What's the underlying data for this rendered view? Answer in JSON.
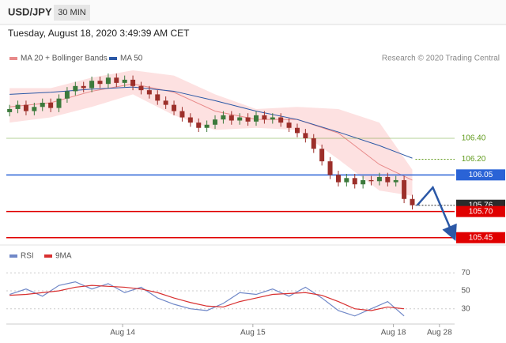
{
  "header": {
    "symbol": "USD/JPY",
    "interval": "30 MIN",
    "timestamp": "Tuesday, August 18, 2020 3:49:39 AM CET",
    "source": "Research © 2020 Trading Central"
  },
  "chart_data": [
    {
      "type": "candlestick",
      "open": [
        106.65,
        106.68,
        106.72,
        106.66,
        106.7,
        106.74,
        106.69,
        106.78,
        106.85,
        106.9,
        106.88,
        106.95,
        106.92,
        106.98,
        106.93,
        106.96,
        106.9,
        106.86,
        106.82,
        106.76,
        106.72,
        106.66,
        106.6,
        106.55,
        106.5,
        106.53,
        106.58,
        106.62,
        106.57,
        106.6,
        106.56,
        106.62,
        106.58,
        106.6,
        106.55,
        106.5,
        106.45,
        106.4,
        106.3,
        106.18,
        106.05,
        105.98,
        106.02,
        105.96,
        106.0,
        105.99,
        106.03,
        105.98,
        106.0,
        105.82
      ],
      "high": [
        106.72,
        106.76,
        106.76,
        106.74,
        106.78,
        106.78,
        106.82,
        106.89,
        106.94,
        106.94,
        106.99,
        106.99,
        107.02,
        107.02,
        107.0,
        107.0,
        106.94,
        106.9,
        106.86,
        106.8,
        106.76,
        106.7,
        106.64,
        106.59,
        106.57,
        106.62,
        106.66,
        106.66,
        106.64,
        106.64,
        106.66,
        106.66,
        106.64,
        106.64,
        106.59,
        106.54,
        106.49,
        106.44,
        106.34,
        106.22,
        106.09,
        106.06,
        106.06,
        106.04,
        106.04,
        106.07,
        106.07,
        106.04,
        106.04,
        105.86
      ],
      "low": [
        106.61,
        106.64,
        106.62,
        106.62,
        106.66,
        106.65,
        106.65,
        106.74,
        106.81,
        106.84,
        106.84,
        106.88,
        106.88,
        106.89,
        106.89,
        106.86,
        106.82,
        106.78,
        106.72,
        106.68,
        106.62,
        106.56,
        106.51,
        106.46,
        106.46,
        106.49,
        106.54,
        106.53,
        106.53,
        106.52,
        106.52,
        106.54,
        106.54,
        106.51,
        106.46,
        106.41,
        106.36,
        106.26,
        106.14,
        106.01,
        105.94,
        105.94,
        105.92,
        105.92,
        105.95,
        105.95,
        105.94,
        105.94,
        105.78,
        105.72
      ],
      "close": [
        106.68,
        106.72,
        106.66,
        106.7,
        106.74,
        106.69,
        106.78,
        106.85,
        106.9,
        106.88,
        106.95,
        106.92,
        106.98,
        106.93,
        106.96,
        106.9,
        106.86,
        106.82,
        106.76,
        106.72,
        106.66,
        106.6,
        106.55,
        106.5,
        106.53,
        106.58,
        106.62,
        106.57,
        106.6,
        106.56,
        106.62,
        106.58,
        106.6,
        106.55,
        106.5,
        106.45,
        106.4,
        106.3,
        106.18,
        106.05,
        105.98,
        106.02,
        105.96,
        106.0,
        105.99,
        106.03,
        105.98,
        106.0,
        105.82,
        105.76
      ],
      "up_color": "#3c7a3c",
      "down_color": "#9c2f2a",
      "series_x": [
        0,
        5,
        10,
        15,
        20,
        25,
        30,
        35,
        40,
        45,
        49
      ],
      "series": [
        {
          "name": "MA 20 + Bollinger Bands",
          "color": "#e88a8a",
          "band_color": "#fde1e1",
          "values": [
            106.7,
            106.74,
            106.85,
            106.92,
            106.84,
            106.66,
            106.58,
            106.58,
            106.45,
            106.15,
            106.0
          ],
          "upper": [
            106.88,
            106.88,
            106.98,
            107.05,
            107.0,
            106.82,
            106.68,
            106.7,
            106.68,
            106.55,
            106.1
          ],
          "lower": [
            106.55,
            106.6,
            106.7,
            106.82,
            106.62,
            106.48,
            106.5,
            106.48,
            106.2,
            105.9,
            105.85
          ]
        },
        {
          "name": "MA 50",
          "color": "#2b58a6",
          "values": [
            106.82,
            106.84,
            106.87,
            106.89,
            106.85,
            106.76,
            106.66,
            106.58,
            106.46,
            106.33,
            106.21
          ]
        }
      ],
      "levels": [
        {
          "value": 106.4,
          "label": "106.40",
          "color": "#5f9a1a",
          "badge": false,
          "dashed": false
        },
        {
          "value": 106.2,
          "label": "106.20",
          "color": "#5f9a1a",
          "badge": false,
          "dashed": true
        },
        {
          "value": 106.05,
          "label": "106.05",
          "color": "#2a63d6",
          "badge": true,
          "dashed": false
        },
        {
          "value": 105.76,
          "label": "105.76",
          "color": "#2b2b2b",
          "badge": true,
          "dashed": true
        },
        {
          "value": 105.7,
          "label": "105.70",
          "color": "#e00000",
          "badge": true,
          "dashed": false
        },
        {
          "value": 105.45,
          "label": "105.45",
          "color": "#e00000",
          "badge": true,
          "dashed": false
        }
      ],
      "forecast": {
        "x": [
          49.6,
          51.5,
          54
        ],
        "values": [
          105.76,
          105.93,
          105.47
        ],
        "color": "#2b58a6"
      },
      "ylim": [
        105.38,
        107.08
      ],
      "xlim": [
        -0.4,
        60.4
      ]
    },
    {
      "type": "line",
      "x": [
        0,
        2,
        4,
        6,
        8,
        10,
        12,
        14,
        16,
        18,
        20,
        22,
        24,
        26,
        28,
        30,
        32,
        34,
        36,
        38,
        40,
        42,
        44,
        46,
        48
      ],
      "series": [
        {
          "name": "RSI",
          "color": "#7088c8",
          "values": [
            46,
            52,
            44,
            56,
            60,
            52,
            58,
            48,
            54,
            42,
            35,
            30,
            28,
            36,
            48,
            46,
            52,
            44,
            54,
            42,
            28,
            22,
            30,
            38,
            22
          ]
        },
        {
          "name": "9MA",
          "color": "#d83030",
          "values": [
            45,
            46,
            48,
            50,
            54,
            56,
            55,
            54,
            52,
            48,
            42,
            37,
            33,
            32,
            38,
            42,
            46,
            47,
            48,
            45,
            38,
            30,
            28,
            32,
            30
          ]
        }
      ],
      "ylim": [
        13,
        94
      ],
      "yticks": [
        30,
        50,
        70
      ],
      "xlim": [
        -0.4,
        60.4
      ],
      "xticks": [
        {
          "value": 13.75,
          "label": "Aug 14"
        },
        {
          "value": 29.6,
          "label": "Aug 15"
        },
        {
          "value": 46.7,
          "label": "Aug 18"
        },
        {
          "value": 52.3,
          "label": "Aug 28"
        }
      ]
    }
  ]
}
